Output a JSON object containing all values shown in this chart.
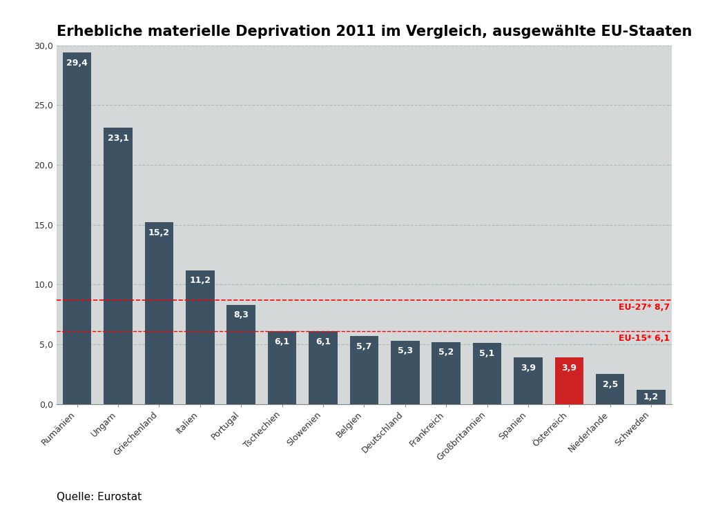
{
  "title": "Erhebliche materielle Deprivation 2011 im Vergleich, ausgewählte EU-Staaten",
  "categories": [
    "Rumänien",
    "Ungarn",
    "Griechenland",
    "Italien",
    "Portugal",
    "Tschechien",
    "Slowenien",
    "Belgien",
    "Deutschland",
    "Frankreich",
    "Großbritannien",
    "Spanien",
    "Österreich",
    "Niederlande",
    "Schweden"
  ],
  "values": [
    29.4,
    23.1,
    15.2,
    11.2,
    8.3,
    6.1,
    6.1,
    5.7,
    5.3,
    5.2,
    5.1,
    3.9,
    3.9,
    2.5,
    1.2
  ],
  "bar_colors": [
    "#3d5263",
    "#3d5263",
    "#3d5263",
    "#3d5263",
    "#3d5263",
    "#3d5263",
    "#3d5263",
    "#3d5263",
    "#3d5263",
    "#3d5263",
    "#3d5263",
    "#3d5263",
    "#cc2222",
    "#3d5263",
    "#3d5263"
  ],
  "eu27_value": 8.7,
  "eu15_value": 6.1,
  "eu27_label": "EU-27* 8,7",
  "eu15_label": "EU-15* 6,1",
  "ylim": [
    0,
    30.0
  ],
  "yticks": [
    0.0,
    5.0,
    10.0,
    15.0,
    20.0,
    25.0,
    30.0
  ],
  "ytick_labels": [
    "0,0",
    "5,0",
    "10,0",
    "15,0",
    "20,0",
    "25,0",
    "30,0"
  ],
  "fig_bg_color": "#ffffff",
  "plot_bg_color": "#d4d8d8",
  "bar_dark_color": "#3d5263",
  "bar_red_color": "#cc2222",
  "source_text": "Quelle: Eurostat",
  "title_fontsize": 15,
  "label_fontsize": 9,
  "tick_fontsize": 9,
  "source_fontsize": 11,
  "grid_color": "#aab8b8",
  "eu_label_fontsize": 9
}
